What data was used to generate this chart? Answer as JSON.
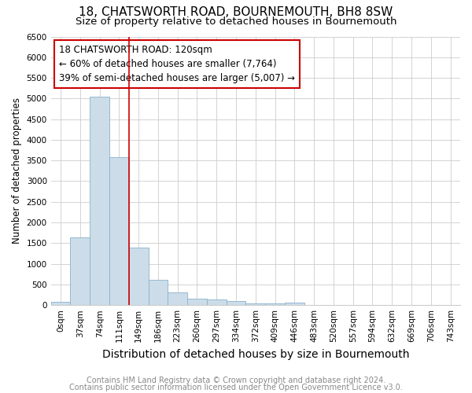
{
  "title": "18, CHATSWORTH ROAD, BOURNEMOUTH, BH8 8SW",
  "subtitle": "Size of property relative to detached houses in Bournemouth",
  "xlabel": "Distribution of detached houses by size in Bournemouth",
  "ylabel": "Number of detached properties",
  "footnote1": "Contains HM Land Registry data © Crown copyright and database right 2024.",
  "footnote2": "Contains public sector information licensed under the Open Government Licence v3.0.",
  "bin_labels": [
    "0sqm",
    "37sqm",
    "74sqm",
    "111sqm",
    "149sqm",
    "186sqm",
    "223sqm",
    "260sqm",
    "297sqm",
    "334sqm",
    "372sqm",
    "409sqm",
    "446sqm",
    "483sqm",
    "520sqm",
    "557sqm",
    "594sqm",
    "632sqm",
    "669sqm",
    "706sqm",
    "743sqm"
  ],
  "bar_values": [
    75,
    1640,
    5050,
    3580,
    1400,
    610,
    300,
    155,
    135,
    90,
    45,
    35,
    65,
    0,
    0,
    0,
    0,
    0,
    0,
    0,
    0
  ],
  "bar_color": "#ccdde9",
  "bar_edgecolor": "#8ab0cc",
  "vline_color": "#cc0000",
  "annotation_text": "18 CHATSWORTH ROAD: 120sqm\n← 60% of detached houses are smaller (7,764)\n39% of semi-detached houses are larger (5,007) →",
  "annotation_box_color": "#ffffff",
  "annotation_box_edgecolor": "#cc0000",
  "ylim": [
    0,
    6500
  ],
  "yticks": [
    0,
    500,
    1000,
    1500,
    2000,
    2500,
    3000,
    3500,
    4000,
    4500,
    5000,
    5500,
    6000,
    6500
  ],
  "grid_color": "#cccccc",
  "background_color": "#ffffff",
  "title_fontsize": 11,
  "subtitle_fontsize": 9.5,
  "xlabel_fontsize": 10,
  "ylabel_fontsize": 8.5,
  "tick_fontsize": 7.5,
  "annotation_fontsize": 8.5,
  "footnote_fontsize": 7
}
